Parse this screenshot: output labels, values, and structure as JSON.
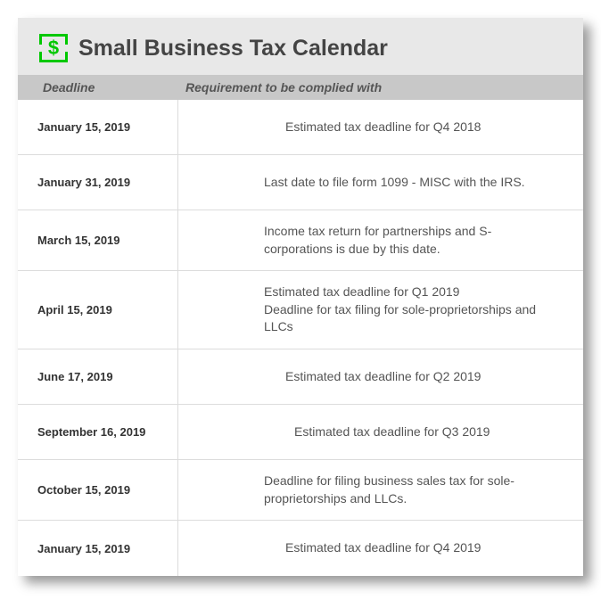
{
  "title": "Small Business Tax Calendar",
  "icon_color": "#00c800",
  "header_bg": "#e8e8e8",
  "colheader_bg": "#c8c8c8",
  "row_bg": "#ffffff",
  "border_color": "#dcdcdc",
  "columns": {
    "deadline": "Deadline",
    "requirement": "Requirement to be complied with"
  },
  "rows": [
    {
      "deadline": "January 15, 2019",
      "requirement": [
        "Estimated tax deadline for Q4 2018"
      ],
      "align": "centered"
    },
    {
      "deadline": "January 31, 2019",
      "requirement": [
        "Last date to file form 1099 - MISC with the IRS."
      ],
      "align": ""
    },
    {
      "deadline": "March 15, 2019",
      "requirement": [
        "Income tax return for partnerships and S-corporations is due by this date."
      ],
      "align": ""
    },
    {
      "deadline": "April 15, 2019",
      "requirement": [
        "Estimated tax deadline for Q1 2019",
        "Deadline for tax filing for sole-proprietorships and LLCs"
      ],
      "align": ""
    },
    {
      "deadline": "June 17, 2019",
      "requirement": [
        "Estimated tax deadline for Q2 2019"
      ],
      "align": "centered"
    },
    {
      "deadline": "September 16, 2019",
      "requirement": [
        "Estimated tax deadline for Q3 2019"
      ],
      "align": "centered2"
    },
    {
      "deadline": "October 15, 2019",
      "requirement": [
        "Deadline for filing business sales tax for sole-proprietorships and LLCs."
      ],
      "align": ""
    },
    {
      "deadline": "January 15, 2019",
      "requirement": [
        "Estimated tax deadline for Q4 2019"
      ],
      "align": "centered"
    }
  ]
}
